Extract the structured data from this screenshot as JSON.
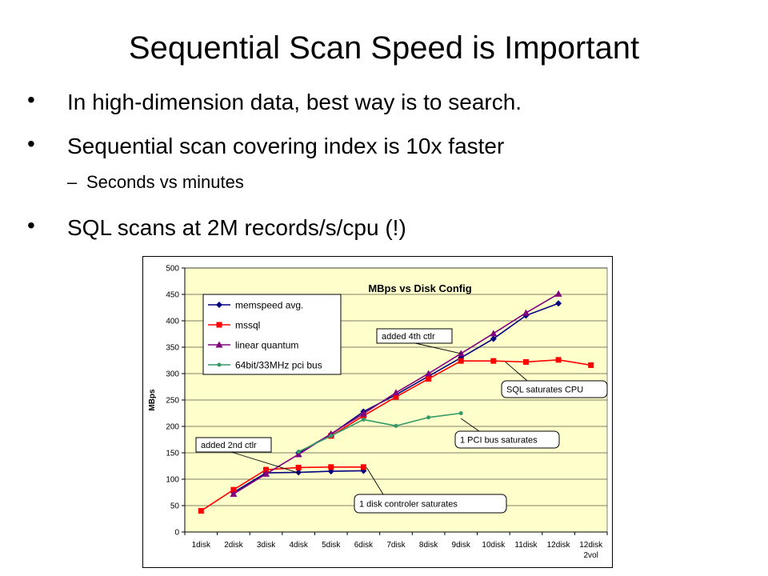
{
  "slide": {
    "title": "Sequential Scan Speed is Important",
    "bullets": [
      {
        "marker": "•",
        "text": "In high-dimension data, best way is to search."
      },
      {
        "marker": "•",
        "text": "Sequential scan covering index is 10x faster"
      },
      {
        "marker": "–",
        "text": "Seconds vs minutes"
      },
      {
        "marker": "•",
        "text": "SQL scans at 2M records/s/cpu (!)"
      }
    ]
  },
  "chart_data": {
    "type": "line",
    "title": "MBps vs Disk Config",
    "ylabel": "MBps",
    "xlabel": "",
    "ylim": [
      0,
      500
    ],
    "yticks": [
      0,
      50,
      100,
      150,
      200,
      250,
      300,
      350,
      400,
      450,
      500
    ],
    "grid": true,
    "legend_position": "top-left",
    "categories": [
      "1disk",
      "2disk",
      "3disk",
      "4disk",
      "5disk",
      "6disk",
      "7disk",
      "8disk",
      "9disk",
      "10disk",
      "11disk",
      "12disk",
      "12disk\n2vol"
    ],
    "category_lines": [
      [
        "1disk"
      ],
      [
        "2disk"
      ],
      [
        "3disk"
      ],
      [
        "4disk"
      ],
      [
        "5disk"
      ],
      [
        "6disk"
      ],
      [
        "7disk"
      ],
      [
        "8disk"
      ],
      [
        "9disk"
      ],
      [
        "10disk"
      ],
      [
        "11disk"
      ],
      [
        "12disk"
      ],
      [
        "12disk",
        "2vol"
      ]
    ],
    "series": [
      {
        "name": "memspeed avg.",
        "color": "#000080",
        "marker": "diamond",
        "values": [
          null,
          75,
          112,
          113,
          115,
          116,
          null,
          null,
          null,
          null,
          null,
          null,
          null
        ]
      },
      {
        "name": "memspeed avg.",
        "color": "#000080",
        "marker": "diamond",
        "legend": false,
        "values": [
          null,
          null,
          null,
          150,
          185,
          228,
          260,
          295,
          330,
          366,
          410,
          433,
          null
        ]
      },
      {
        "name": "mssql",
        "color": "#ff0000",
        "marker": "square",
        "values": [
          40,
          80,
          118,
          122,
          123,
          123,
          null,
          null,
          null,
          null,
          null,
          null,
          null
        ]
      },
      {
        "name": "mssql",
        "color": "#ff0000",
        "marker": "square",
        "legend": false,
        "values": [
          null,
          null,
          null,
          null,
          182,
          220,
          256,
          290,
          324,
          324,
          322,
          326,
          316
        ]
      },
      {
        "name": "linear quantum",
        "color": "#800080",
        "marker": "triangle",
        "values": [
          null,
          72,
          110,
          147,
          186,
          224,
          264,
          300,
          338,
          376,
          415,
          451,
          null
        ]
      },
      {
        "name": "64bit/33MHz pci bus",
        "color": "#339966",
        "marker": "circle",
        "values": [
          null,
          null,
          null,
          152,
          182,
          213,
          201,
          217,
          225,
          null,
          null,
          null,
          null
        ]
      }
    ],
    "annotations": [
      {
        "text": "added 4th ctlr"
      },
      {
        "text": "SQL saturates CPU"
      },
      {
        "text": "1 PCI bus saturates"
      },
      {
        "text": "added 2nd ctlr"
      },
      {
        "text": "1  disk controler saturates"
      }
    ],
    "colors": {
      "plot_bg": "#ffffcc",
      "gridline": "#000000"
    }
  }
}
